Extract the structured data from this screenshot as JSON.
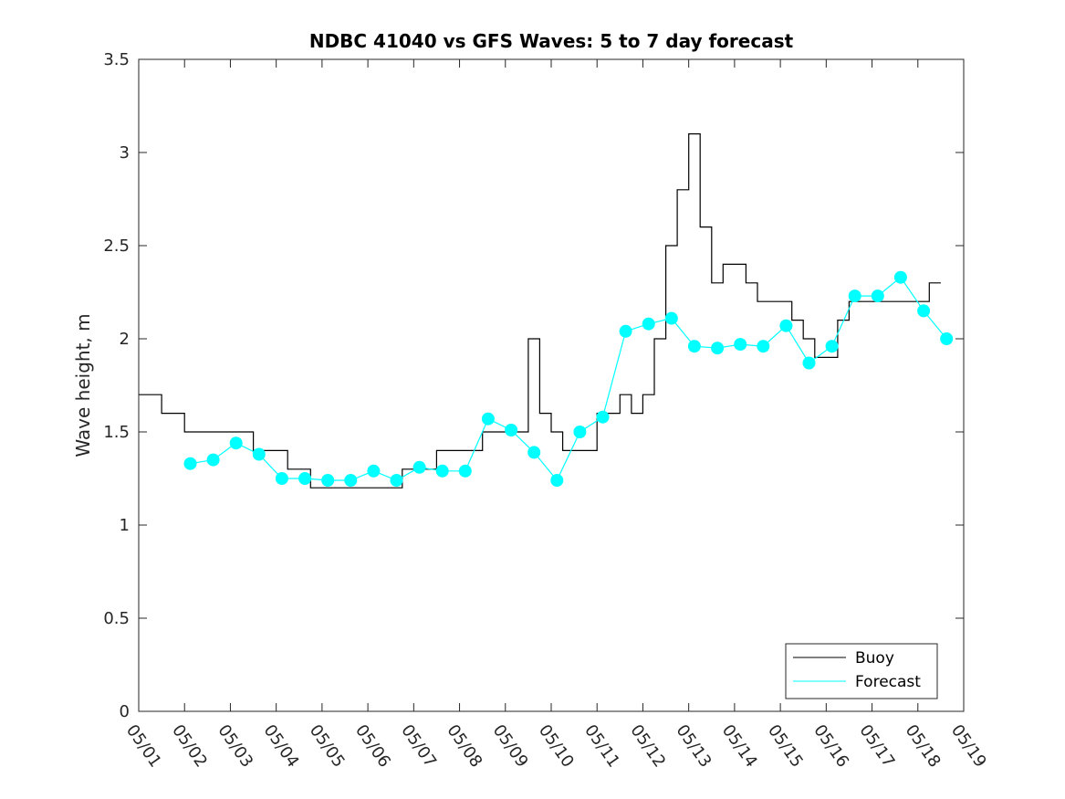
{
  "chart_data": {
    "type": "line",
    "title": "NDBC 41040 vs GFS Waves: 5 to 7 day forecast",
    "xlabel": "",
    "ylabel": "Wave height, m",
    "xlim": [
      "05/01",
      "05/19"
    ],
    "ylim": [
      0,
      3.5
    ],
    "yticks": [
      "0",
      "0.5",
      "1",
      "1.5",
      "2",
      "2.5",
      "3",
      "3.5"
    ],
    "xticks": [
      "05/01",
      "05/02",
      "05/03",
      "05/04",
      "05/05",
      "05/06",
      "05/07",
      "05/08",
      "05/09",
      "05/10",
      "05/11",
      "05/12",
      "05/13",
      "05/14",
      "05/15",
      "05/16",
      "05/17",
      "05/18",
      "05/19"
    ],
    "grid": false,
    "legend": {
      "position": "bottom-right",
      "entries": [
        "Buoy",
        "Forecast"
      ]
    },
    "colors": {
      "buoy": "#000000",
      "forecast": "#00ffff",
      "axes": "#262626"
    },
    "series": [
      {
        "name": "Buoy",
        "x": [
          "05/01 00:00",
          "05/01 06:00",
          "05/01 12:00",
          "05/01 18:00",
          "05/02 00:00",
          "05/02 06:00",
          "05/02 12:00",
          "05/02 18:00",
          "05/03 00:00",
          "05/03 06:00",
          "05/03 12:00",
          "05/03 18:00",
          "05/04 00:00",
          "05/04 06:00",
          "05/04 12:00",
          "05/04 18:00",
          "05/05 00:00",
          "05/05 06:00",
          "05/05 12:00",
          "05/05 18:00",
          "05/06 00:00",
          "05/06 06:00",
          "05/06 12:00",
          "05/06 18:00",
          "05/07 00:00",
          "05/07 06:00",
          "05/07 12:00",
          "05/07 18:00",
          "05/08 00:00",
          "05/08 06:00",
          "05/08 12:00",
          "05/08 18:00",
          "05/09 00:00",
          "05/09 06:00",
          "05/09 12:00",
          "05/09 18:00",
          "05/10 00:00",
          "05/10 06:00",
          "05/10 12:00",
          "05/10 18:00",
          "05/11 00:00",
          "05/11 06:00",
          "05/11 12:00",
          "05/11 18:00",
          "05/12 00:00",
          "05/12 06:00",
          "05/12 12:00",
          "05/12 18:00",
          "05/13 00:00",
          "05/13 06:00",
          "05/13 12:00",
          "05/13 18:00",
          "05/14 00:00",
          "05/14 06:00",
          "05/14 12:00",
          "05/14 18:00",
          "05/15 00:00",
          "05/15 06:00",
          "05/15 12:00",
          "05/15 18:00",
          "05/16 00:00",
          "05/16 06:00",
          "05/16 12:00",
          "05/16 18:00",
          "05/17 00:00",
          "05/17 06:00",
          "05/17 12:00",
          "05/17 18:00",
          "05/18 00:00",
          "05/18 06:00",
          "05/18 12:00"
        ],
        "values": [
          1.7,
          1.7,
          1.6,
          1.6,
          1.5,
          1.5,
          1.5,
          1.5,
          1.5,
          1.5,
          1.4,
          1.4,
          1.4,
          1.3,
          1.3,
          1.2,
          1.2,
          1.2,
          1.2,
          1.2,
          1.2,
          1.2,
          1.2,
          1.3,
          1.3,
          1.3,
          1.4,
          1.4,
          1.4,
          1.4,
          1.5,
          1.5,
          1.5,
          1.5,
          2.0,
          1.6,
          1.5,
          1.4,
          1.4,
          1.4,
          1.6,
          1.6,
          1.7,
          1.6,
          1.7,
          2.0,
          2.5,
          2.8,
          3.1,
          2.6,
          2.3,
          2.4,
          2.4,
          2.3,
          2.2,
          2.2,
          2.2,
          2.1,
          2.0,
          1.9,
          1.9,
          2.1,
          2.2,
          2.2,
          2.2,
          2.2,
          2.2,
          2.2,
          2.2,
          2.3,
          2.3
        ]
      },
      {
        "name": "Forecast",
        "x": [
          "05/02 03:00",
          "05/02 15:00",
          "05/03 03:00",
          "05/03 15:00",
          "05/04 03:00",
          "05/04 15:00",
          "05/05 03:00",
          "05/05 15:00",
          "05/06 03:00",
          "05/06 15:00",
          "05/07 03:00",
          "05/07 15:00",
          "05/08 03:00",
          "05/08 15:00",
          "05/09 03:00",
          "05/09 15:00",
          "05/10 03:00",
          "05/10 15:00",
          "05/11 03:00",
          "05/11 15:00",
          "05/12 03:00",
          "05/12 15:00",
          "05/13 03:00",
          "05/13 15:00",
          "05/14 03:00",
          "05/14 15:00",
          "05/15 03:00",
          "05/15 15:00",
          "05/16 03:00",
          "05/16 15:00",
          "05/17 03:00",
          "05/17 15:00",
          "05/18 03:00",
          "05/18 15:00"
        ],
        "values": [
          1.33,
          1.35,
          1.44,
          1.38,
          1.25,
          1.25,
          1.24,
          1.24,
          1.29,
          1.24,
          1.31,
          1.29,
          1.29,
          1.57,
          1.51,
          1.39,
          1.24,
          1.5,
          1.58,
          2.04,
          2.08,
          2.11,
          1.96,
          1.95,
          1.97,
          1.96,
          2.07,
          1.87,
          1.96,
          2.23,
          2.23,
          2.33,
          2.15,
          2.0
        ]
      }
    ]
  }
}
